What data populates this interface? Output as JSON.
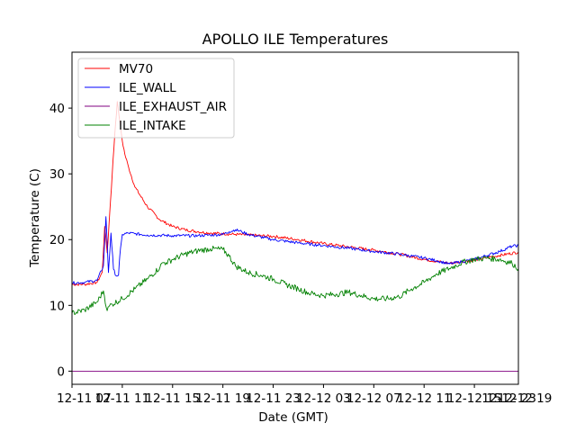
{
  "chart_data": {
    "type": "line",
    "title": "APOLLO ILE Temperatures",
    "xlabel": "Date (GMT)",
    "ylabel": "Temperature (C)",
    "xlim": [
      0,
      35.5
    ],
    "ylim": [
      -2,
      48.5
    ],
    "grid": false,
    "legend_position": "top-left",
    "x_unit": "hours since 12-11 07:00",
    "x_ticks": [
      {
        "value": 0,
        "label": "12-11 07"
      },
      {
        "value": 4,
        "label": "12-11 11"
      },
      {
        "value": 8,
        "label": "12-11 15"
      },
      {
        "value": 12,
        "label": "12-11 19"
      },
      {
        "value": 16,
        "label": "12-11 23"
      },
      {
        "value": 20,
        "label": "12-12 03"
      },
      {
        "value": 24,
        "label": "12-12 07"
      },
      {
        "value": 28,
        "label": "12-12 11"
      },
      {
        "value": 32,
        "label": "12-12 15"
      },
      {
        "value": 36,
        "label": "12-12 19"
      },
      {
        "value": 40,
        "label": "12-12 23"
      }
    ],
    "y_ticks": [
      0,
      10,
      20,
      30,
      40
    ],
    "series": [
      {
        "name": "MV70",
        "color": "#ff0000",
        "x": [
          0,
          1,
          2,
          2.4,
          2.6,
          2.8,
          3.0,
          3.2,
          3.4,
          3.6,
          3.8,
          4.0,
          4.2,
          4.5,
          5,
          6,
          7,
          8,
          9,
          10,
          11,
          12,
          13,
          14,
          15,
          16,
          18,
          20,
          22,
          24,
          26,
          28,
          30,
          32,
          34,
          35.5
        ],
        "y": [
          13.2,
          13.2,
          13.5,
          15,
          22,
          18,
          24,
          30,
          36,
          41,
          38,
          35,
          33,
          31,
          28,
          25,
          23,
          22,
          21.5,
          21.2,
          21.0,
          20.9,
          20.8,
          20.7,
          20.6,
          20.5,
          20.0,
          19.4,
          18.9,
          18.4,
          17.8,
          17.0,
          16.4,
          16.9,
          17.6,
          18.1
        ]
      },
      {
        "name": "ILE_WALL",
        "color": "#0000ff",
        "x": [
          0,
          1,
          2,
          2.5,
          2.7,
          2.9,
          3.1,
          3.3,
          3.5,
          3.7,
          3.8,
          4.0,
          4.5,
          5,
          6,
          8,
          10,
          11,
          12,
          12.5,
          13,
          13.5,
          14,
          16,
          18,
          20,
          22,
          24,
          26,
          28,
          29,
          30,
          32,
          34,
          35,
          35.5
        ],
        "y": [
          13.4,
          13.5,
          13.8,
          16,
          23.5,
          15,
          21,
          15.5,
          14.5,
          14.6,
          17.5,
          20.8,
          21.0,
          20.9,
          20.7,
          20.6,
          20.6,
          20.7,
          20.8,
          21.2,
          21.5,
          21.2,
          20.8,
          20.0,
          19.5,
          19.1,
          18.7,
          18.2,
          17.8,
          17.2,
          16.8,
          16.3,
          17.0,
          18.2,
          19.0,
          19.1
        ]
      },
      {
        "name": "ILE_EXHAUST_AIR",
        "color": "#800080",
        "x": [
          0,
          35.5
        ],
        "y": [
          0,
          0
        ]
      },
      {
        "name": "ILE_INTAKE",
        "color": "#008000",
        "x": [
          0,
          1,
          2,
          2.5,
          2.8,
          3.0,
          3.2,
          4,
          5,
          6,
          7,
          7.2,
          7.5,
          8,
          9,
          10,
          11,
          12,
          12.5,
          13,
          14,
          15,
          16,
          17,
          18,
          19,
          20,
          21,
          22,
          23,
          24,
          25,
          26,
          27,
          28,
          29,
          30,
          31,
          32,
          33,
          34,
          35,
          35.5
        ],
        "y": [
          8.8,
          9.3,
          10.5,
          12.2,
          9.2,
          10.0,
          10.2,
          11,
          12.5,
          14,
          15.8,
          16.5,
          16.5,
          17,
          17.8,
          18.3,
          18.6,
          18.5,
          17.5,
          16,
          15,
          14.6,
          14,
          13.2,
          12.5,
          11.8,
          11.5,
          11.7,
          12.0,
          11.5,
          11.0,
          11.0,
          11.3,
          12.5,
          13.5,
          14.8,
          15.6,
          16.5,
          17.0,
          17.2,
          17.0,
          16.4,
          15.6
        ]
      }
    ]
  }
}
